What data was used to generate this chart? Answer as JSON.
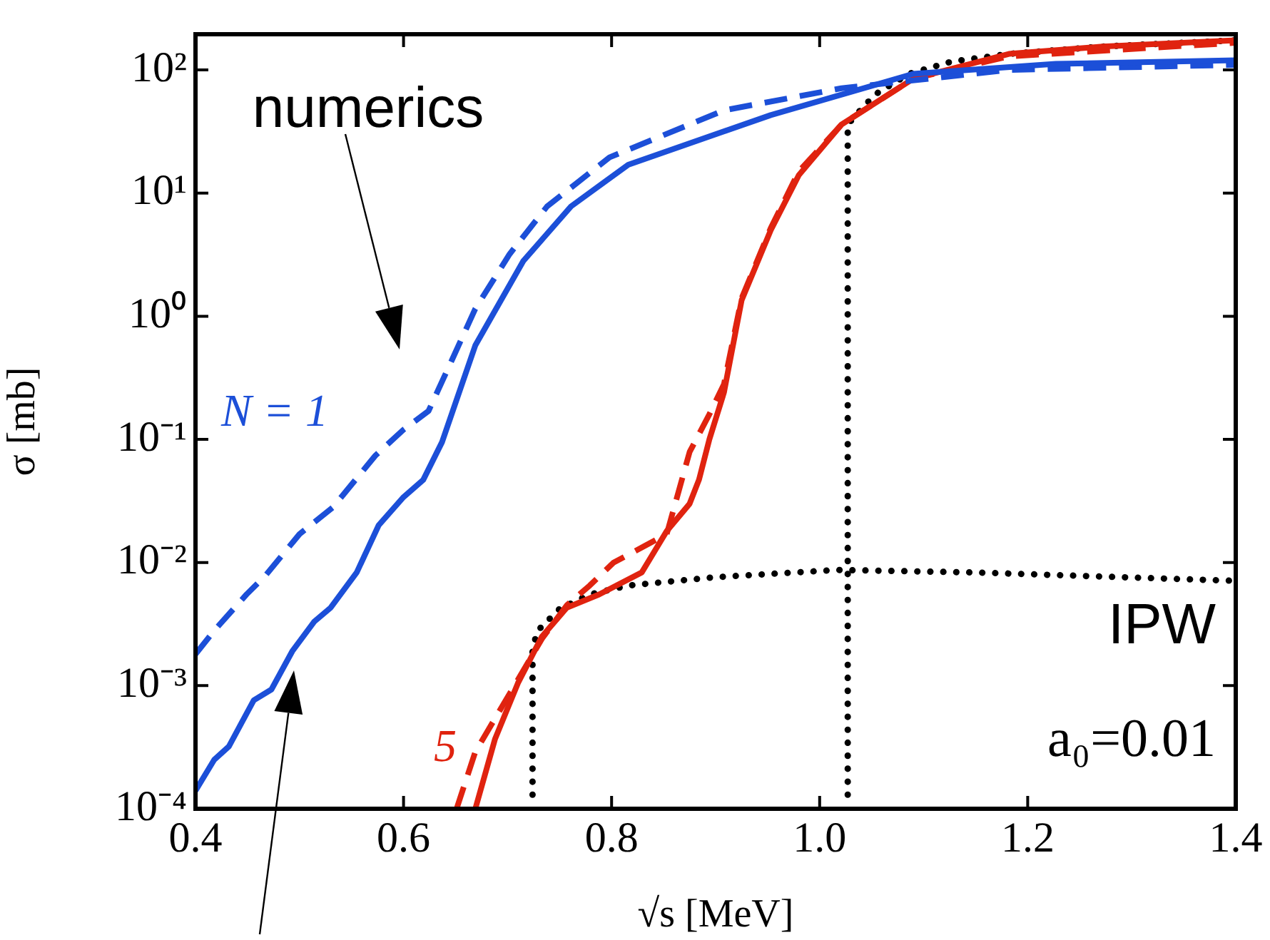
{
  "chart_data": {
    "type": "line",
    "xlabel": "√s [MeV]",
    "ylabel": "σ [mb]",
    "log": "y",
    "xlim": [
      0.4,
      1.4
    ],
    "xticks": [
      0.4,
      0.6,
      0.8,
      {
        "value": 1,
        "label": "1.0"
      },
      1.2,
      1.4
    ],
    "ylim": [
      0.0001,
      195
    ],
    "yticks": [
      {
        "value": 0.0001,
        "label": "10⁻⁴"
      },
      {
        "value": 0.001,
        "label": "10⁻³"
      },
      {
        "value": 0.01,
        "label": "10⁻²"
      },
      {
        "value": 0.1,
        "label": "10⁻¹"
      },
      {
        "value": 1,
        "label": "10⁰"
      },
      {
        "value": 10,
        "label": "10¹"
      },
      {
        "value": 100,
        "label": "10²"
      }
    ],
    "series": [
      {
        "name": "N = 1",
        "color": "#1c4fd8",
        "line_style": "solid",
        "x": [
          0.4,
          0.418,
          0.432,
          0.456,
          0.473,
          0.493,
          0.514,
          0.53,
          0.555,
          0.576,
          0.6,
          0.619,
          0.637,
          0.669,
          0.715,
          0.761,
          0.816,
          0.953,
          1.09,
          1.227,
          1.4
        ],
        "values": [
          0.00014,
          0.00025,
          0.00032,
          0.00076,
          0.00093,
          0.0019,
          0.0033,
          0.0043,
          0.0083,
          0.02,
          0.034,
          0.047,
          0.095,
          0.58,
          2.8,
          7.8,
          17,
          43,
          93,
          112,
          120
        ]
      },
      {
        "color": "#1c4fd8",
        "line_style": "dashed",
        "x": [
          0.4,
          0.418,
          0.449,
          0.467,
          0.5,
          0.532,
          0.573,
          0.6,
          0.624,
          0.647,
          0.669,
          0.702,
          0.738,
          0.798,
          0.908,
          1.021,
          1.182,
          1.4
        ],
        "values": [
          0.0018,
          0.0028,
          0.0055,
          0.0078,
          0.017,
          0.028,
          0.074,
          0.12,
          0.17,
          0.45,
          1.15,
          3.2,
          7.8,
          19.5,
          47,
          71,
          100,
          110
        ]
      },
      {
        "name": "5",
        "color": "#e0230f",
        "line_style": "solid",
        "x": [
          0.669,
          0.688,
          0.71,
          0.733,
          0.757,
          0.788,
          0.829,
          0.853,
          0.875,
          0.884,
          0.894,
          0.908,
          0.925,
          0.953,
          0.98,
          1.021,
          1.09,
          1.182,
          1.272,
          1.4
        ],
        "values": [
          0.0001,
          0.00037,
          0.00105,
          0.0025,
          0.0043,
          0.0055,
          0.0083,
          0.018,
          0.03,
          0.047,
          0.1,
          0.24,
          1.35,
          5,
          14,
          36,
          85,
          135,
          155,
          174
        ]
      },
      {
        "color": "#e0230f",
        "line_style": "dashed",
        "x": [
          0.651,
          0.669,
          0.706,
          0.733,
          0.757,
          0.779,
          0.802,
          0.853,
          0.875,
          0.894,
          0.908,
          0.925,
          0.953,
          0.98,
          1.021,
          1.09,
          1.182,
          1.4
        ],
        "values": [
          0.0001,
          0.00029,
          0.00098,
          0.0024,
          0.0045,
          0.0065,
          0.01,
          0.017,
          0.079,
          0.16,
          0.28,
          1.4,
          5.2,
          15,
          36,
          85,
          129,
          166
        ]
      },
      {
        "color": "#000000",
        "line_style": "dotted",
        "x": [
          0.724,
          0.724,
          0.729,
          0.75,
          0.779,
          0.816,
          0.9,
          1.017,
          1.15,
          1.4
        ],
        "values": [
          0.00013,
          0.002,
          0.0028,
          0.0042,
          0.0055,
          0.0065,
          0.0076,
          0.0087,
          0.0083,
          0.0071
        ]
      },
      {
        "color": "#000000",
        "line_style": "dotted",
        "x": [
          1.027,
          1.027,
          1.039,
          1.053,
          1.086,
          1.127,
          1.182,
          1.272,
          1.4
        ],
        "values": [
          0.00013,
          36,
          47,
          63,
          93,
          117,
          135,
          155,
          174
        ]
      }
    ],
    "annotations": [
      "numerics",
      "IPW",
      "a₀=0.01"
    ]
  }
}
